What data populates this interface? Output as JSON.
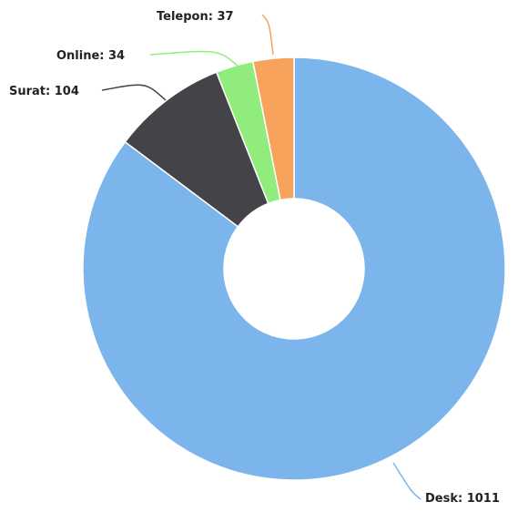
{
  "chart_data": {
    "type": "pie",
    "donut": true,
    "slices": [
      {
        "label": "Desk",
        "value": 1011,
        "color": "#7cb5ec",
        "label_text": "Desk: 1011"
      },
      {
        "label": "Surat",
        "value": 104,
        "color": "#434348",
        "label_text": "Surat: 104"
      },
      {
        "label": "Online",
        "value": 34,
        "color": "#90ed7d",
        "label_text": "Online: 34"
      },
      {
        "label": "Telepon",
        "value": 37,
        "color": "#f7a35c",
        "label_text": "Telepon: 37"
      }
    ],
    "title": "",
    "legend": "none"
  }
}
